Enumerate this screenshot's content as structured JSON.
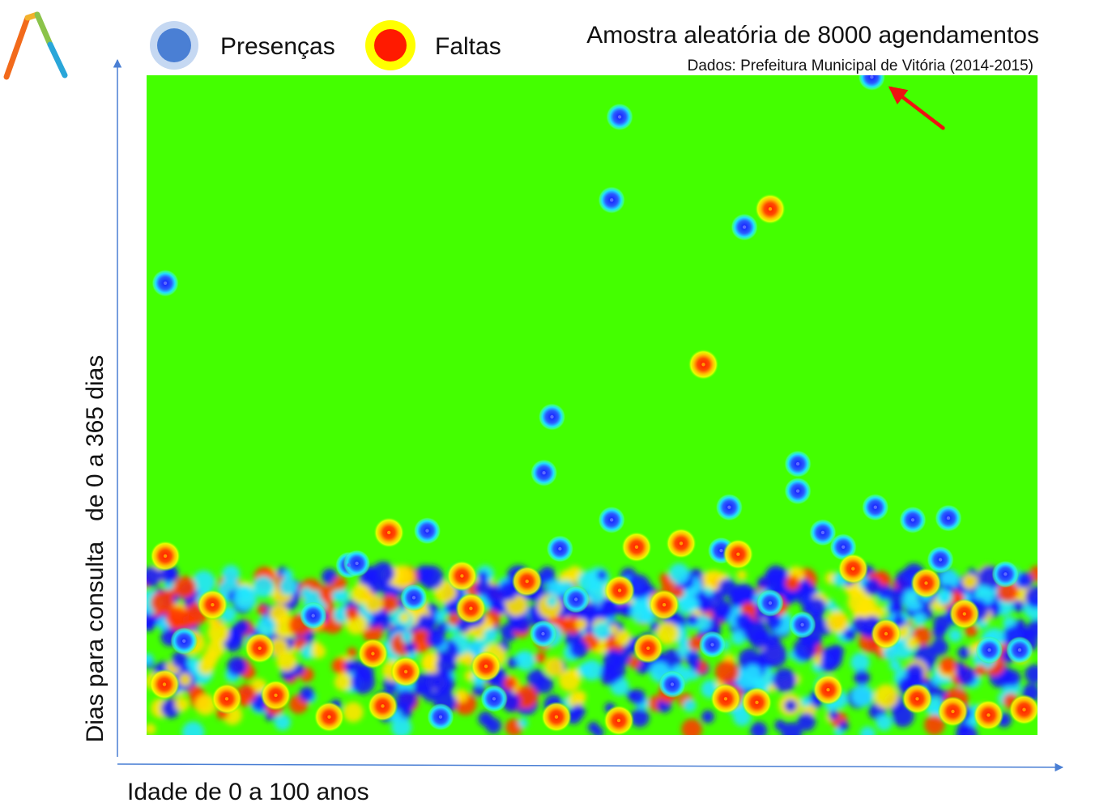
{
  "chart_data": {
    "type": "heatmap",
    "title": "Amostra aleatória de 8000 agendamentos",
    "subtitle": "Dados: Prefeitura Municipal de Vitória (2014-2015)",
    "xlabel": "Idade de 0 a 100 anos",
    "ylabel": "Dias para consulta   de 0 a 365 dias",
    "xlim": [
      0,
      100
    ],
    "ylim": [
      0,
      365
    ],
    "grid": false,
    "legend_position": "top",
    "legend": [
      {
        "label": "Presenças",
        "category": "presence",
        "color": "#4a7fd4"
      },
      {
        "label": "Faltas",
        "category": "absence",
        "color": "#ff1a00"
      }
    ],
    "colors": {
      "background": "#44ff00",
      "presence_core": "#1a1aff",
      "presence_halo": "#33ffee",
      "absence_core": "#ff1a00",
      "absence_halo": "#ffff00",
      "axis": "#4a7fd4",
      "annotation_arrow": "#ee1111"
    },
    "annotation": {
      "type": "arrow",
      "target_x": 81.4,
      "target_y": 364
    },
    "points": [
      {
        "x": 81.4,
        "y": 364,
        "type": "presence"
      },
      {
        "x": 53.1,
        "y": 342,
        "type": "presence"
      },
      {
        "x": 52.2,
        "y": 296,
        "type": "presence"
      },
      {
        "x": 70.0,
        "y": 291,
        "type": "absence"
      },
      {
        "x": 67.1,
        "y": 281,
        "type": "presence"
      },
      {
        "x": 2.1,
        "y": 250,
        "type": "presence"
      },
      {
        "x": 62.5,
        "y": 205,
        "type": "absence"
      },
      {
        "x": 45.5,
        "y": 176,
        "type": "presence"
      },
      {
        "x": 44.6,
        "y": 145,
        "type": "presence"
      },
      {
        "x": 73.1,
        "y": 150,
        "type": "presence"
      },
      {
        "x": 73.1,
        "y": 135,
        "type": "presence"
      },
      {
        "x": 81.8,
        "y": 126,
        "type": "presence"
      },
      {
        "x": 65.4,
        "y": 126,
        "type": "presence"
      },
      {
        "x": 52.2,
        "y": 119,
        "type": "presence"
      },
      {
        "x": 27.2,
        "y": 112,
        "type": "absence"
      },
      {
        "x": 31.5,
        "y": 113,
        "type": "presence"
      },
      {
        "x": 2.1,
        "y": 99,
        "type": "absence"
      },
      {
        "x": 22.7,
        "y": 94,
        "type": "presence"
      },
      {
        "x": 23.6,
        "y": 95,
        "type": "presence"
      },
      {
        "x": 46.4,
        "y": 103,
        "type": "presence"
      },
      {
        "x": 55.0,
        "y": 104,
        "type": "absence"
      },
      {
        "x": 60.0,
        "y": 106,
        "type": "absence"
      },
      {
        "x": 64.5,
        "y": 102,
        "type": "presence"
      },
      {
        "x": 66.4,
        "y": 100,
        "type": "absence"
      },
      {
        "x": 75.9,
        "y": 112,
        "type": "presence"
      },
      {
        "x": 78.2,
        "y": 104,
        "type": "presence"
      },
      {
        "x": 86.0,
        "y": 119,
        "type": "presence"
      },
      {
        "x": 90.0,
        "y": 120,
        "type": "presence"
      },
      {
        "x": 89.1,
        "y": 97,
        "type": "presence"
      },
      {
        "x": 96.4,
        "y": 89,
        "type": "presence"
      },
      {
        "x": 79.3,
        "y": 92,
        "type": "absence"
      },
      {
        "x": 87.5,
        "y": 84,
        "type": "absence"
      },
      {
        "x": 35.4,
        "y": 88,
        "type": "absence"
      },
      {
        "x": 42.7,
        "y": 85,
        "type": "absence"
      },
      {
        "x": 7.4,
        "y": 72,
        "type": "absence"
      },
      {
        "x": 18.7,
        "y": 66,
        "type": "presence"
      },
      {
        "x": 30.0,
        "y": 76,
        "type": "presence"
      },
      {
        "x": 36.4,
        "y": 70,
        "type": "absence"
      },
      {
        "x": 48.2,
        "y": 75,
        "type": "presence"
      },
      {
        "x": 53.1,
        "y": 80,
        "type": "absence"
      },
      {
        "x": 58.1,
        "y": 72,
        "type": "absence"
      },
      {
        "x": 70.0,
        "y": 73,
        "type": "presence"
      },
      {
        "x": 91.8,
        "y": 67,
        "type": "absence"
      },
      {
        "x": 4.2,
        "y": 52,
        "type": "presence"
      },
      {
        "x": 12.7,
        "y": 48,
        "type": "absence"
      },
      {
        "x": 25.4,
        "y": 45,
        "type": "absence"
      },
      {
        "x": 29.1,
        "y": 35,
        "type": "absence"
      },
      {
        "x": 38.1,
        "y": 38,
        "type": "absence"
      },
      {
        "x": 44.5,
        "y": 56,
        "type": "presence"
      },
      {
        "x": 56.3,
        "y": 48,
        "type": "absence"
      },
      {
        "x": 63.5,
        "y": 50,
        "type": "presence"
      },
      {
        "x": 73.6,
        "y": 61,
        "type": "presence"
      },
      {
        "x": 83.0,
        "y": 56,
        "type": "absence"
      },
      {
        "x": 94.6,
        "y": 47,
        "type": "presence"
      },
      {
        "x": 98.0,
        "y": 47,
        "type": "presence"
      },
      {
        "x": 2.0,
        "y": 28,
        "type": "absence"
      },
      {
        "x": 9.0,
        "y": 20,
        "type": "absence"
      },
      {
        "x": 14.5,
        "y": 22,
        "type": "absence"
      },
      {
        "x": 20.5,
        "y": 10,
        "type": "absence"
      },
      {
        "x": 26.5,
        "y": 16,
        "type": "absence"
      },
      {
        "x": 33.0,
        "y": 10,
        "type": "presence"
      },
      {
        "x": 39.0,
        "y": 20,
        "type": "presence"
      },
      {
        "x": 46.0,
        "y": 10,
        "type": "absence"
      },
      {
        "x": 53.0,
        "y": 8,
        "type": "absence"
      },
      {
        "x": 59.0,
        "y": 28,
        "type": "presence"
      },
      {
        "x": 65.0,
        "y": 20,
        "type": "absence"
      },
      {
        "x": 68.5,
        "y": 18,
        "type": "absence"
      },
      {
        "x": 76.5,
        "y": 25,
        "type": "absence"
      },
      {
        "x": 86.5,
        "y": 20,
        "type": "absence"
      },
      {
        "x": 90.5,
        "y": 13,
        "type": "absence"
      },
      {
        "x": 94.5,
        "y": 11,
        "type": "absence"
      },
      {
        "x": 98.5,
        "y": 14,
        "type": "absence"
      }
    ]
  }
}
